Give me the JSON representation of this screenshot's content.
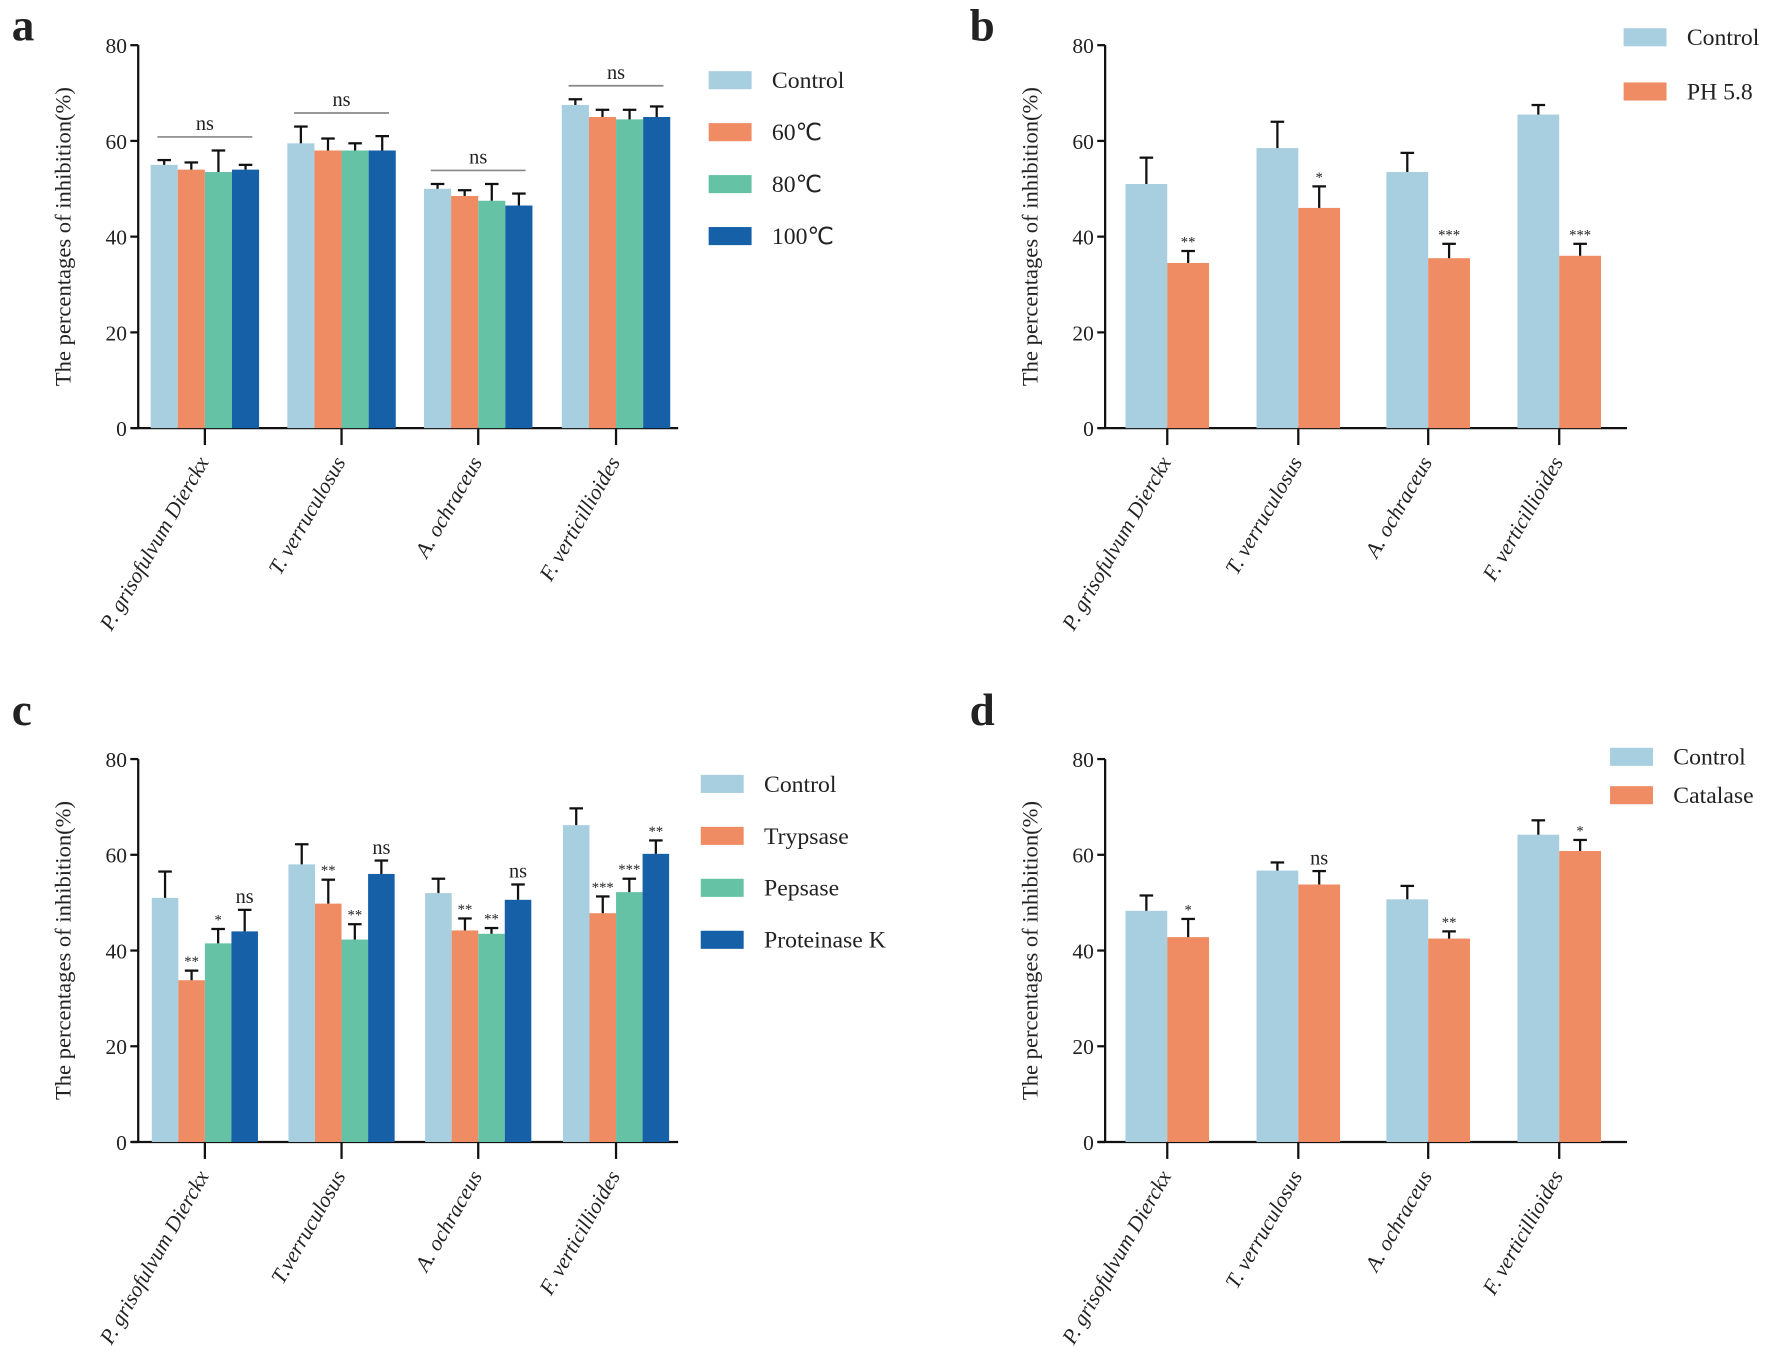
{
  "colors": {
    "Control": "#a8cfe0",
    "orange": "#f08c64",
    "green": "#66c2a5",
    "blue": "#1660a8"
  },
  "chart_data": [
    {
      "panel": "a",
      "type": "bar",
      "ylabel": "The percentages of inhibition(%)",
      "ylim": [
        0,
        80
      ],
      "yticks": [
        0,
        20,
        40,
        60,
        80
      ],
      "categories": [
        "P. grisofulvum Dierckx",
        "T. verruculosus",
        "A. ochraceus",
        "F. verticillioides"
      ],
      "series": [
        {
          "name": "Control",
          "color": "#a8cfe0",
          "values": [
            55,
            59.5,
            50,
            67.5
          ],
          "errors": [
            1,
            3.5,
            1,
            1.2
          ]
        },
        {
          "name": "60℃",
          "color": "#f08c64",
          "values": [
            54,
            58,
            48.5,
            65
          ],
          "errors": [
            1.5,
            2.5,
            1.2,
            1.5
          ]
        },
        {
          "name": "80℃",
          "color": "#66c2a5",
          "values": [
            53.5,
            58,
            47.5,
            64.5
          ],
          "errors": [
            4.5,
            1.5,
            3.5,
            2
          ]
        },
        {
          "name": "100℃",
          "color": "#1660a8",
          "values": [
            54,
            58,
            46.5,
            65
          ],
          "errors": [
            1,
            3,
            2.5,
            2.2
          ]
        }
      ],
      "group_annotations": [
        "ns",
        "ns",
        "ns",
        "ns"
      ],
      "legend": "right"
    },
    {
      "panel": "b",
      "type": "bar",
      "ylabel": "The percentages of inhibition(%)",
      "ylim": [
        0,
        80
      ],
      "yticks": [
        0,
        20,
        40,
        60,
        80
      ],
      "categories": [
        "P. grisofulvum Dierckx",
        "T. verruculosus",
        "A. ochraceus",
        "F. verticillioides"
      ],
      "series": [
        {
          "name": "Control",
          "color": "#a8cfe0",
          "values": [
            51,
            58.5,
            53.5,
            65.5
          ],
          "errors": [
            5.5,
            5.5,
            4,
            2
          ]
        },
        {
          "name": "PH 5.8",
          "color": "#f08c64",
          "values": [
            34.5,
            46,
            35.5,
            36
          ],
          "errors": [
            2.5,
            4.5,
            3,
            2.5
          ],
          "sig": [
            "**",
            "*",
            "***",
            "***"
          ]
        }
      ],
      "legend": "top-right"
    },
    {
      "panel": "c",
      "type": "bar",
      "ylabel": "The percentages of inhibition(%)",
      "ylim": [
        0,
        80
      ],
      "yticks": [
        0,
        20,
        40,
        60,
        80
      ],
      "categories": [
        "P. grisofulvum Dierckx",
        "T.verruculosus",
        "A. ochraceus",
        "F. verticillioides"
      ],
      "series": [
        {
          "name": "Control",
          "color": "#a8cfe0",
          "values": [
            51,
            58,
            52,
            66.2
          ],
          "errors": [
            5.5,
            4.2,
            3,
            3.5
          ]
        },
        {
          "name": "Trypsase",
          "color": "#f08c64",
          "values": [
            33.8,
            49.8,
            44.2,
            47.8
          ],
          "errors": [
            2,
            5,
            2.5,
            3.5
          ],
          "sig": [
            "**",
            "**",
            "**",
            "***"
          ]
        },
        {
          "name": "Pepsase",
          "color": "#66c2a5",
          "values": [
            41.5,
            42.3,
            43.5,
            52.2
          ],
          "errors": [
            3,
            3.2,
            1.2,
            2.8
          ],
          "sig": [
            "*",
            "**",
            "**",
            "***"
          ]
        },
        {
          "name": "Proteinase K",
          "color": "#1660a8",
          "values": [
            44,
            56,
            50.6,
            60.2
          ],
          "errors": [
            4.5,
            2.8,
            3.2,
            2.8
          ],
          "sig": [
            "ns",
            "ns",
            "ns",
            "**"
          ]
        }
      ],
      "legend": "right"
    },
    {
      "panel": "d",
      "type": "bar",
      "ylabel": "The percentages of inhibition(%)",
      "ylim": [
        0,
        80
      ],
      "yticks": [
        0,
        20,
        40,
        60,
        80
      ],
      "categories": [
        "P. grisofulvum Dierckx",
        "T. verruculosus",
        "A. ochraceus",
        "F. verticillioides"
      ],
      "series": [
        {
          "name": "Control",
          "color": "#a8cfe0",
          "values": [
            48.3,
            56.7,
            50.7,
            64.2
          ],
          "errors": [
            3.2,
            1.7,
            2.8,
            3
          ]
        },
        {
          "name": "Catalase",
          "color": "#f08c64",
          "values": [
            42.8,
            53.8,
            42.5,
            60.8
          ],
          "errors": [
            3.8,
            2.8,
            1.5,
            2.3
          ],
          "sig": [
            "*",
            "ns",
            "**",
            "*"
          ]
        }
      ],
      "legend": "top-right"
    }
  ]
}
